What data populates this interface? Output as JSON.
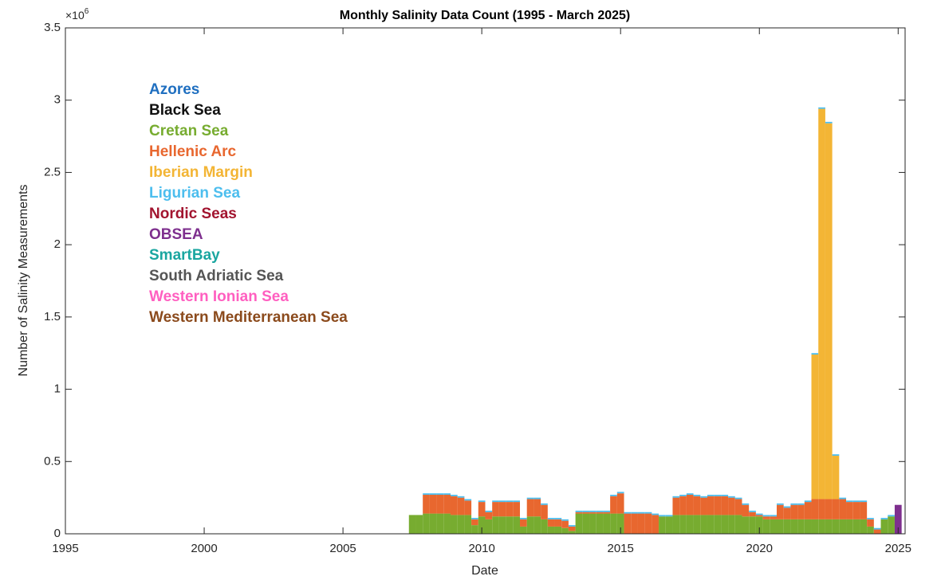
{
  "chart_data": {
    "type": "stacked_bar",
    "title": "Monthly Salinity Data Count (1995 - March 2025)",
    "xlabel": "Date",
    "ylabel": "Number of Salinity Measurements",
    "y_multiplier": "×10",
    "y_multiplier_exp": "6",
    "xlim": [
      1995,
      2025.25
    ],
    "xticks": [
      1995,
      2000,
      2005,
      2010,
      2015,
      2020,
      2025
    ],
    "ylim": [
      0,
      3.5
    ],
    "yticks": [
      0,
      0.5,
      1,
      1.5,
      2,
      2.5,
      3,
      3.5
    ],
    "x": [
      2007.5,
      2007.75,
      2008,
      2008.25,
      2008.5,
      2008.75,
      2009,
      2009.25,
      2009.5,
      2009.75,
      2010,
      2010.25,
      2010.5,
      2010.75,
      2011,
      2011.25,
      2011.5,
      2011.75,
      2012,
      2012.25,
      2012.5,
      2012.75,
      2013,
      2013.25,
      2013.5,
      2013.75,
      2014,
      2014.25,
      2014.5,
      2014.75,
      2015,
      2015.25,
      2015.5,
      2015.75,
      2016,
      2016.25,
      2016.5,
      2016.75,
      2017,
      2017.25,
      2017.5,
      2017.75,
      2018,
      2018.25,
      2018.5,
      2018.75,
      2019,
      2019.25,
      2019.5,
      2019.75,
      2020,
      2020.25,
      2020.5,
      2020.75,
      2021,
      2021.25,
      2021.5,
      2021.75,
      2022,
      2022.25,
      2022.5,
      2022.75,
      2023,
      2023.25,
      2023.5,
      2023.75,
      2024,
      2024.25,
      2024.5,
      2024.75,
      2025
    ],
    "series": [
      {
        "name": "Azores",
        "color": "#1f6fc0",
        "values": [
          0,
          0,
          0,
          0,
          0,
          0,
          0,
          0,
          0,
          0,
          0,
          0,
          0,
          0,
          0,
          0,
          0,
          0,
          0,
          0,
          0,
          0,
          0,
          0,
          0,
          0,
          0,
          0,
          0,
          0,
          0,
          0,
          0,
          0,
          0,
          0,
          0,
          0,
          0,
          0,
          0,
          0,
          0,
          0,
          0,
          0,
          0,
          0,
          0,
          0,
          0,
          0,
          0,
          0,
          0,
          0,
          0,
          0,
          0,
          0,
          0,
          0,
          0,
          0,
          0,
          0,
          0,
          0,
          0,
          0,
          0
        ]
      },
      {
        "name": "Black Sea",
        "color": "#111111",
        "values": [
          0,
          0,
          0,
          0,
          0,
          0,
          0,
          0,
          0,
          0,
          0,
          0,
          0,
          0,
          0,
          0,
          0,
          0,
          0,
          0,
          0,
          0,
          0,
          0,
          0,
          0,
          0,
          0,
          0,
          0,
          0,
          0,
          0,
          0,
          0,
          0,
          0,
          0,
          0,
          0,
          0,
          0,
          0,
          0,
          0,
          0,
          0,
          0,
          0,
          0,
          0,
          0,
          0,
          0,
          0,
          0,
          0,
          0,
          0,
          0,
          0,
          0,
          0,
          0,
          0,
          0,
          0,
          0,
          0,
          0,
          0
        ]
      },
      {
        "name": "Cretan Sea",
        "color": "#77ac30",
        "values": [
          0.13,
          0.13,
          0.14,
          0.14,
          0.14,
          0.14,
          0.13,
          0.13,
          0.13,
          0.06,
          0.12,
          0.1,
          0.12,
          0.12,
          0.12,
          0.12,
          0.05,
          0.12,
          0.12,
          0.1,
          0.05,
          0.05,
          0.04,
          0.02,
          0.14,
          0.14,
          0.14,
          0.14,
          0.14,
          0.14,
          0.14,
          0,
          0,
          0,
          0,
          0,
          0.12,
          0.12,
          0.13,
          0.13,
          0.13,
          0.13,
          0.13,
          0.13,
          0.13,
          0.13,
          0.13,
          0.13,
          0.12,
          0.12,
          0.12,
          0.1,
          0.1,
          0.1,
          0.1,
          0.1,
          0.1,
          0.1,
          0.1,
          0.1,
          0.1,
          0.1,
          0.1,
          0.1,
          0.1,
          0.1,
          0.05,
          0,
          0.1,
          0.12,
          0
        ]
      },
      {
        "name": "Hellenic Arc",
        "color": "#e8672f",
        "values": [
          0,
          0,
          0.13,
          0.13,
          0.13,
          0.13,
          0.13,
          0.12,
          0.1,
          0.04,
          0.1,
          0.05,
          0.1,
          0.1,
          0.1,
          0.1,
          0.05,
          0.12,
          0.12,
          0.1,
          0.05,
          0.05,
          0.05,
          0.03,
          0.01,
          0.01,
          0.01,
          0.01,
          0.01,
          0.12,
          0.14,
          0.14,
          0.14,
          0.14,
          0.14,
          0.13,
          0,
          0,
          0.12,
          0.13,
          0.14,
          0.13,
          0.12,
          0.13,
          0.13,
          0.13,
          0.12,
          0.11,
          0.08,
          0.03,
          0.01,
          0.02,
          0.02,
          0.1,
          0.08,
          0.1,
          0.1,
          0.12,
          0.14,
          0.14,
          0.14,
          0.14,
          0.14,
          0.12,
          0.12,
          0.12,
          0.05,
          0.03,
          0,
          0,
          0
        ]
      },
      {
        "name": "Iberian Margin",
        "color": "#f3b535",
        "values": [
          0,
          0,
          0,
          0,
          0,
          0,
          0,
          0,
          0,
          0,
          0,
          0,
          0,
          0,
          0,
          0,
          0,
          0,
          0,
          0,
          0,
          0,
          0,
          0,
          0,
          0,
          0,
          0,
          0,
          0,
          0,
          0,
          0,
          0,
          0,
          0,
          0,
          0,
          0,
          0,
          0,
          0,
          0,
          0,
          0,
          0,
          0,
          0,
          0,
          0,
          0,
          0,
          0,
          0,
          0,
          0,
          0,
          0,
          1,
          2.7,
          2.6,
          0.3,
          0,
          0,
          0,
          0,
          0,
          0,
          0,
          0,
          0
        ]
      },
      {
        "name": "Ligurian Sea",
        "color": "#4dbeee",
        "values": [
          0,
          0,
          0.01,
          0.01,
          0.01,
          0.01,
          0.01,
          0.01,
          0.01,
          0.01,
          0.01,
          0.01,
          0.01,
          0.01,
          0.01,
          0.01,
          0.01,
          0.01,
          0.01,
          0.01,
          0.01,
          0.01,
          0.01,
          0.01,
          0.01,
          0.01,
          0.01,
          0.01,
          0.01,
          0.01,
          0.01,
          0.01,
          0.01,
          0.01,
          0.01,
          0.01,
          0.01,
          0.01,
          0.01,
          0.01,
          0.01,
          0.01,
          0.01,
          0.01,
          0.01,
          0.01,
          0.01,
          0.01,
          0.01,
          0.01,
          0.01,
          0.01,
          0.01,
          0.01,
          0.01,
          0.01,
          0.01,
          0.01,
          0.01,
          0.01,
          0.01,
          0.01,
          0.01,
          0.01,
          0.01,
          0.01,
          0.01,
          0.01,
          0.01,
          0.01,
          0
        ]
      },
      {
        "name": "Nordic Seas",
        "color": "#a2142f",
        "values": [
          0,
          0,
          0,
          0,
          0,
          0,
          0,
          0,
          0,
          0,
          0,
          0,
          0,
          0,
          0,
          0,
          0,
          0,
          0,
          0,
          0,
          0,
          0,
          0,
          0,
          0,
          0,
          0,
          0,
          0,
          0,
          0,
          0,
          0,
          0,
          0,
          0,
          0,
          0,
          0,
          0,
          0,
          0,
          0,
          0,
          0,
          0,
          0,
          0,
          0,
          0,
          0,
          0,
          0,
          0,
          0,
          0,
          0,
          0,
          0,
          0,
          0,
          0,
          0,
          0,
          0,
          0,
          0,
          0,
          0,
          0
        ]
      },
      {
        "name": "OBSEA",
        "color": "#7e2f8e",
        "values": [
          0,
          0,
          0,
          0,
          0,
          0,
          0,
          0,
          0,
          0,
          0,
          0,
          0,
          0,
          0,
          0,
          0,
          0,
          0,
          0,
          0,
          0,
          0,
          0,
          0,
          0,
          0,
          0,
          0,
          0,
          0,
          0,
          0,
          0,
          0,
          0,
          0,
          0,
          0,
          0,
          0,
          0,
          0,
          0,
          0,
          0,
          0,
          0,
          0,
          0,
          0,
          0,
          0,
          0,
          0,
          0,
          0,
          0,
          0,
          0,
          0,
          0,
          0,
          0,
          0,
          0,
          0,
          0,
          0,
          0,
          0.2
        ]
      },
      {
        "name": "SmartBay",
        "color": "#1aa6a0",
        "values": [
          0,
          0,
          0,
          0,
          0,
          0,
          0,
          0,
          0,
          0,
          0,
          0,
          0,
          0,
          0,
          0,
          0,
          0,
          0,
          0,
          0,
          0,
          0,
          0,
          0,
          0,
          0,
          0,
          0,
          0,
          0,
          0,
          0,
          0,
          0,
          0,
          0,
          0,
          0,
          0,
          0,
          0,
          0,
          0,
          0,
          0,
          0,
          0,
          0,
          0,
          0,
          0,
          0,
          0,
          0,
          0,
          0,
          0,
          0,
          0,
          0,
          0,
          0,
          0,
          0,
          0,
          0,
          0,
          0,
          0,
          0
        ]
      },
      {
        "name": "South Adriatic Sea",
        "color": "#555555",
        "values": [
          0,
          0,
          0,
          0,
          0,
          0,
          0,
          0,
          0,
          0,
          0,
          0,
          0,
          0,
          0,
          0,
          0,
          0,
          0,
          0,
          0,
          0,
          0,
          0,
          0,
          0,
          0,
          0,
          0,
          0,
          0,
          0,
          0,
          0,
          0,
          0,
          0,
          0,
          0,
          0,
          0,
          0,
          0,
          0,
          0,
          0,
          0,
          0,
          0,
          0,
          0,
          0,
          0,
          0,
          0,
          0,
          0,
          0,
          0,
          0,
          0,
          0,
          0,
          0,
          0,
          0,
          0,
          0,
          0,
          0,
          0
        ]
      },
      {
        "name": "Western Ionian Sea",
        "color": "#ff5fc0",
        "values": [
          0,
          0,
          0,
          0,
          0,
          0,
          0,
          0,
          0,
          0,
          0,
          0,
          0,
          0,
          0,
          0,
          0,
          0,
          0,
          0,
          0,
          0,
          0,
          0,
          0,
          0,
          0,
          0,
          0,
          0,
          0,
          0,
          0,
          0,
          0,
          0,
          0,
          0,
          0,
          0,
          0,
          0,
          0,
          0,
          0,
          0,
          0,
          0,
          0,
          0,
          0,
          0,
          0,
          0,
          0,
          0,
          0,
          0,
          0,
          0,
          0,
          0,
          0,
          0,
          0,
          0,
          0,
          0,
          0,
          0,
          0
        ]
      },
      {
        "name": "Western Mediterranean Sea",
        "color": "#8b4a1c",
        "values": [
          0,
          0,
          0,
          0,
          0,
          0,
          0,
          0,
          0,
          0,
          0,
          0,
          0,
          0,
          0,
          0,
          0,
          0,
          0,
          0,
          0,
          0,
          0,
          0,
          0,
          0,
          0,
          0,
          0,
          0,
          0,
          0,
          0,
          0,
          0,
          0,
          0,
          0,
          0,
          0,
          0,
          0,
          0,
          0,
          0,
          0,
          0,
          0,
          0,
          0,
          0,
          0,
          0,
          0,
          0,
          0,
          0,
          0,
          0,
          0,
          0,
          0,
          0,
          0,
          0,
          0,
          0,
          0,
          0,
          0,
          0
        ]
      }
    ]
  }
}
